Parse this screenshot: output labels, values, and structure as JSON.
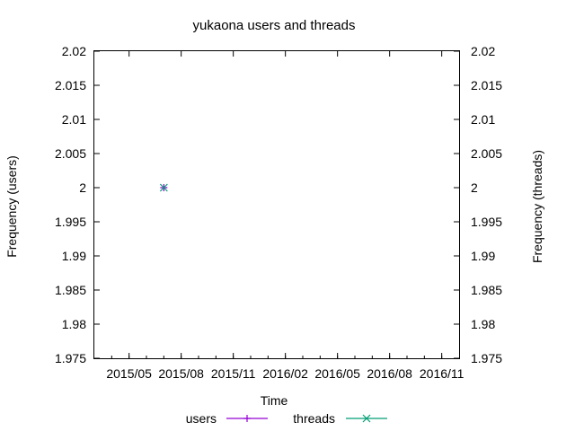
{
  "chart_data": {
    "type": "scatter",
    "title": "yukaona users and threads",
    "xlabel": "Time",
    "ylabel_left": "Frequency (users)",
    "ylabel_right": "Frequency (threads)",
    "x_ticks": [
      "2015/05",
      "2015/08",
      "2015/11",
      "2016/02",
      "2016/05",
      "2016/08",
      "2016/11"
    ],
    "x_range": [
      "2015/03",
      "2016/12"
    ],
    "y_ticks": [
      "1.975",
      "1.98",
      "1.985",
      "1.99",
      "1.995",
      "2",
      "2.005",
      "2.01",
      "2.015",
      "2.02"
    ],
    "ylim": [
      1.975,
      2.02
    ],
    "y2lim": [
      1.975,
      2.02
    ],
    "grid": false,
    "legend": "bottom",
    "series": [
      {
        "name": "users",
        "color": "#9400d3",
        "marker": "plus",
        "axis": "left",
        "points": [
          {
            "x": "2015/07",
            "y": 2
          }
        ]
      },
      {
        "name": "threads",
        "color": "#009e73",
        "marker": "cross",
        "axis": "right",
        "points": [
          {
            "x": "2015/07",
            "y": 2
          }
        ]
      }
    ]
  }
}
